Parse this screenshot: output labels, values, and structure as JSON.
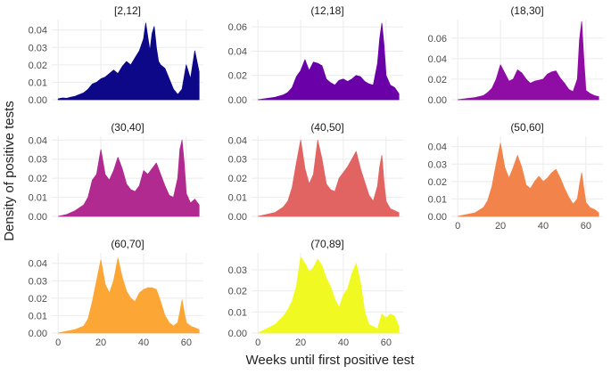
{
  "figure": {
    "xlabel": "Weeks until first positive test",
    "ylabel": "Density of positive tests"
  },
  "chart_data": {
    "type": "area",
    "layout": "faceted 3x3 small multiples, free y-axis per panel",
    "xlim": [
      -3,
      68
    ],
    "xticks": [
      0,
      20,
      40,
      60
    ],
    "xlabel": "Weeks until first positive test",
    "ylabel": "Density of positive tests",
    "grid": true,
    "panels": [
      {
        "title": "[2,12]",
        "color": "#0d0887",
        "ylim": [
          0,
          0.046
        ],
        "yticks": [
          "0.00",
          "0.01",
          "0.02",
          "0.03",
          "0.04"
        ],
        "x": [
          0,
          2,
          4,
          6,
          8,
          10,
          12,
          14,
          16,
          18,
          20,
          22,
          24,
          26,
          28,
          30,
          32,
          34,
          36,
          38,
          40,
          41,
          42,
          43,
          44,
          45,
          46,
          47,
          48,
          50,
          52,
          54,
          56,
          58,
          60,
          62,
          64,
          66
        ],
        "y": [
          0.0005,
          0.001,
          0.0008,
          0.0015,
          0.002,
          0.003,
          0.004,
          0.006,
          0.009,
          0.01,
          0.012,
          0.013,
          0.015,
          0.017,
          0.015,
          0.019,
          0.022,
          0.02,
          0.024,
          0.028,
          0.035,
          0.044,
          0.036,
          0.028,
          0.038,
          0.042,
          0.03,
          0.022,
          0.02,
          0.018,
          0.012,
          0.006,
          0.003,
          0.006,
          0.02,
          0.012,
          0.028,
          0.016
        ]
      },
      {
        "title": "(12,18]",
        "color": "#6a00a8",
        "ylim": [
          0,
          0.066
        ],
        "yticks": [
          "0.00",
          "0.02",
          "0.04",
          "0.06"
        ],
        "x": [
          0,
          4,
          8,
          12,
          14,
          16,
          18,
          20,
          22,
          24,
          26,
          28,
          30,
          32,
          34,
          36,
          38,
          40,
          42,
          44,
          46,
          48,
          50,
          52,
          54,
          56,
          57,
          58,
          59,
          60,
          62,
          64,
          66
        ],
        "y": [
          0.0,
          0.001,
          0.002,
          0.004,
          0.006,
          0.01,
          0.019,
          0.024,
          0.033,
          0.024,
          0.031,
          0.03,
          0.028,
          0.017,
          0.014,
          0.012,
          0.016,
          0.017,
          0.015,
          0.017,
          0.02,
          0.019,
          0.015,
          0.013,
          0.012,
          0.03,
          0.05,
          0.063,
          0.045,
          0.02,
          0.012,
          0.01,
          0.005
        ]
      },
      {
        "title": "(18,30]",
        "color": "#8f0da4",
        "ylim": [
          0,
          0.078
        ],
        "yticks": [
          "0.00",
          "0.02",
          "0.04",
          "0.06"
        ],
        "x": [
          0,
          4,
          8,
          12,
          14,
          16,
          18,
          20,
          22,
          24,
          26,
          28,
          30,
          32,
          34,
          36,
          38,
          40,
          42,
          44,
          46,
          48,
          50,
          52,
          54,
          56,
          57,
          58,
          59,
          60,
          62,
          64,
          66
        ],
        "y": [
          0.0,
          0.001,
          0.002,
          0.004,
          0.007,
          0.011,
          0.02,
          0.034,
          0.026,
          0.018,
          0.02,
          0.029,
          0.026,
          0.02,
          0.016,
          0.018,
          0.019,
          0.02,
          0.025,
          0.027,
          0.028,
          0.021,
          0.016,
          0.01,
          0.008,
          0.02,
          0.058,
          0.076,
          0.04,
          0.009,
          0.006,
          0.004,
          0.003
        ]
      },
      {
        "title": "(30,40]",
        "color": "#b12a90",
        "ylim": [
          0,
          0.042
        ],
        "yticks": [
          "0.00",
          "0.01",
          "0.02",
          "0.03",
          "0.04"
        ],
        "x": [
          0,
          4,
          8,
          12,
          14,
          16,
          18,
          20,
          22,
          24,
          26,
          28,
          30,
          32,
          34,
          36,
          38,
          40,
          42,
          44,
          46,
          48,
          50,
          52,
          54,
          56,
          57,
          58,
          59,
          60,
          62,
          64,
          66
        ],
        "y": [
          0.0,
          0.001,
          0.003,
          0.006,
          0.01,
          0.019,
          0.022,
          0.035,
          0.022,
          0.019,
          0.024,
          0.031,
          0.025,
          0.017,
          0.014,
          0.013,
          0.016,
          0.024,
          0.022,
          0.025,
          0.028,
          0.022,
          0.016,
          0.011,
          0.01,
          0.02,
          0.035,
          0.04,
          0.028,
          0.012,
          0.007,
          0.009,
          0.006
        ]
      },
      {
        "title": "(40,50]",
        "color": "#e16462",
        "ylim": [
          0,
          0.042
        ],
        "yticks": [
          "0.00",
          "0.01",
          "0.02",
          "0.03",
          "0.04"
        ],
        "x": [
          0,
          4,
          8,
          12,
          14,
          16,
          18,
          20,
          22,
          24,
          26,
          28,
          30,
          32,
          34,
          36,
          38,
          40,
          42,
          44,
          46,
          48,
          50,
          52,
          54,
          56,
          57,
          58,
          59,
          60,
          62,
          64,
          66
        ],
        "y": [
          0.0,
          0.001,
          0.002,
          0.005,
          0.008,
          0.015,
          0.028,
          0.04,
          0.025,
          0.017,
          0.022,
          0.04,
          0.03,
          0.017,
          0.014,
          0.013,
          0.02,
          0.023,
          0.026,
          0.03,
          0.034,
          0.025,
          0.018,
          0.011,
          0.008,
          0.016,
          0.026,
          0.032,
          0.018,
          0.008,
          0.004,
          0.003,
          0.002
        ]
      },
      {
        "title": "(50,60]",
        "color": "#f2844b",
        "ylim": [
          0,
          0.046
        ],
        "yticks": [
          "0.00",
          "0.01",
          "0.02",
          "0.03",
          "0.04"
        ],
        "x": [
          0,
          4,
          8,
          12,
          14,
          16,
          18,
          20,
          22,
          24,
          26,
          28,
          30,
          32,
          34,
          36,
          38,
          40,
          42,
          44,
          46,
          48,
          50,
          52,
          54,
          56,
          57,
          58,
          59,
          60,
          62,
          64,
          66
        ],
        "y": [
          0.0,
          0.001,
          0.002,
          0.005,
          0.009,
          0.017,
          0.03,
          0.042,
          0.028,
          0.022,
          0.028,
          0.035,
          0.028,
          0.018,
          0.016,
          0.02,
          0.023,
          0.02,
          0.022,
          0.025,
          0.027,
          0.022,
          0.016,
          0.011,
          0.007,
          0.01,
          0.018,
          0.025,
          0.016,
          0.008,
          0.005,
          0.004,
          0.002
        ]
      },
      {
        "title": "(60,70]",
        "color": "#fca636",
        "ylim": [
          0,
          0.046
        ],
        "yticks": [
          "0.00",
          "0.01",
          "0.02",
          "0.03",
          "0.04"
        ],
        "x": [
          0,
          4,
          8,
          12,
          14,
          16,
          18,
          20,
          22,
          24,
          26,
          28,
          30,
          32,
          34,
          36,
          38,
          40,
          42,
          44,
          46,
          48,
          50,
          52,
          54,
          56,
          57,
          58,
          59,
          60,
          62,
          64,
          66
        ],
        "y": [
          0.0,
          0.001,
          0.002,
          0.004,
          0.008,
          0.018,
          0.03,
          0.042,
          0.028,
          0.023,
          0.03,
          0.043,
          0.032,
          0.024,
          0.02,
          0.018,
          0.023,
          0.025,
          0.026,
          0.026,
          0.025,
          0.018,
          0.01,
          0.006,
          0.004,
          0.006,
          0.012,
          0.019,
          0.012,
          0.006,
          0.004,
          0.003,
          0.002
        ]
      },
      {
        "title": "(70,89]",
        "color": "#f0f921",
        "ylim": [
          0,
          0.038
        ],
        "yticks": [
          "0.00",
          "0.01",
          "0.02",
          "0.03"
        ],
        "x": [
          0,
          4,
          8,
          12,
          14,
          16,
          18,
          20,
          22,
          24,
          26,
          28,
          30,
          32,
          34,
          36,
          38,
          40,
          42,
          44,
          46,
          48,
          50,
          52,
          54,
          56,
          58,
          60,
          62,
          64,
          66
        ],
        "y": [
          0.0,
          0.002,
          0.004,
          0.008,
          0.011,
          0.015,
          0.022,
          0.036,
          0.033,
          0.029,
          0.031,
          0.035,
          0.032,
          0.026,
          0.022,
          0.016,
          0.012,
          0.018,
          0.021,
          0.028,
          0.033,
          0.024,
          0.01,
          0.004,
          0.003,
          0.002,
          0.009,
          0.007,
          0.009,
          0.008,
          0.003
        ]
      }
    ]
  }
}
